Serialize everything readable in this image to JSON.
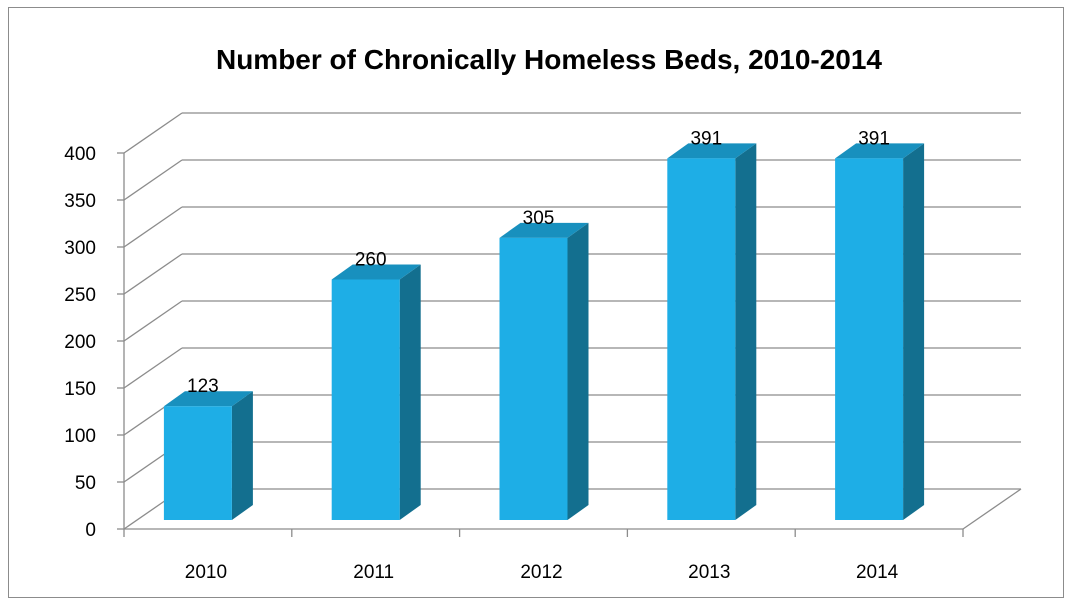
{
  "chart_data": {
    "type": "bar",
    "title": "Number of Chronically Homeless Beds, 2010-2014",
    "xlabel": "",
    "ylabel": "",
    "categories": [
      "2010",
      "2011",
      "2012",
      "2013",
      "2014"
    ],
    "values": [
      123,
      260,
      305,
      391,
      391
    ],
    "data_labels": [
      "123",
      "260",
      "305",
      "391",
      "391"
    ],
    "ylim": [
      0,
      400
    ],
    "yticks": [
      "0",
      "50",
      "100",
      "150",
      "200",
      "250",
      "300",
      "350",
      "400"
    ],
    "grid": true,
    "legend": "none",
    "style": "3d-column",
    "colors": {
      "bar_front": "#1eaee6",
      "bar_side": "#136f8f",
      "bar_top": "#1890be",
      "grid": "#8c8c8c"
    }
  }
}
